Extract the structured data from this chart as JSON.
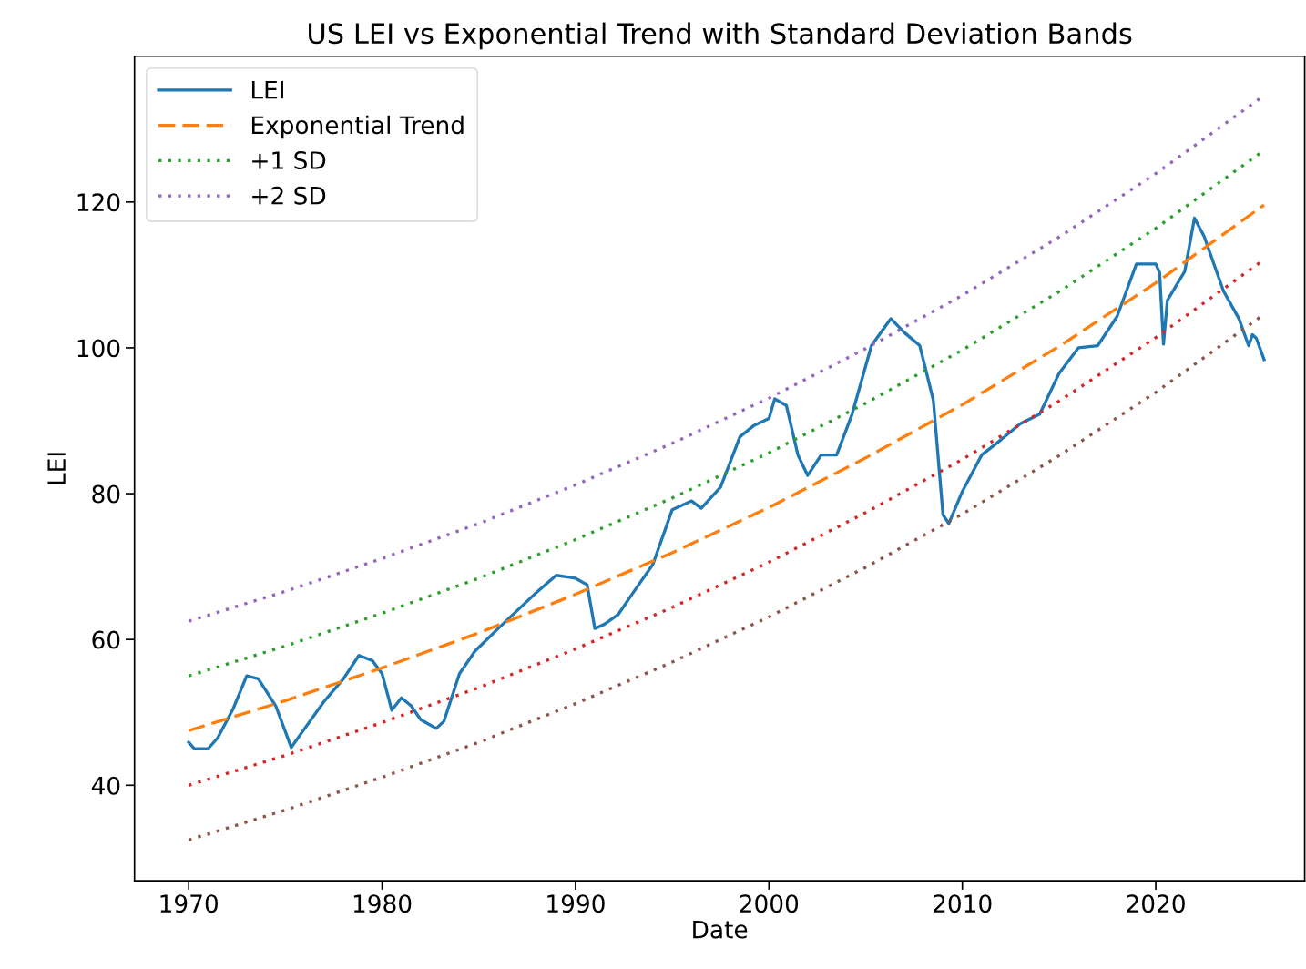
{
  "chart_data": {
    "type": "line",
    "title": "US LEI vs Exponential Trend with Standard Deviation Bands",
    "xlabel": "Date",
    "ylabel": "LEI",
    "xlim": [
      1967.2,
      2027.7
    ],
    "xticks": [
      1970,
      1980,
      1990,
      2000,
      2010,
      2020
    ],
    "ylim": [
      26.9,
      140
    ],
    "yticks": [
      40,
      60,
      80,
      100,
      120
    ],
    "grid": false,
    "legend": "top left",
    "series": [
      {
        "name": "LEI",
        "color": "#1f77b4",
        "line_style": "solid",
        "x": [
          1970.0,
          1970.3,
          1971.0,
          1971.5,
          1972.3,
          1973.0,
          1973.6,
          1974.5,
          1975.3,
          1976.0,
          1977.0,
          1978.0,
          1978.8,
          1979.5,
          1980.0,
          1980.5,
          1981.0,
          1981.5,
          1982.0,
          1982.8,
          1983.2,
          1984.0,
          1984.8,
          1986.0,
          1987.0,
          1988.0,
          1989.0,
          1990.0,
          1990.6,
          1991.0,
          1991.5,
          1992.2,
          1993.0,
          1994.0,
          1995.0,
          1996.0,
          1996.5,
          1997.5,
          1998.5,
          1999.2,
          2000.0,
          2000.3,
          2000.9,
          2001.5,
          2002.0,
          2002.7,
          2003.5,
          2004.3,
          2005.3,
          2006.3,
          2007.0,
          2007.8,
          2008.5,
          2009.0,
          2009.3,
          2010.0,
          2011.0,
          2012.0,
          2013.0,
          2014.0,
          2015.0,
          2016.0,
          2017.0,
          2018.0,
          2019.0,
          2020.0,
          2020.2,
          2020.4,
          2020.6,
          2021.5,
          2022.0,
          2022.5,
          2023.5,
          2024.3,
          2024.8,
          2025.0,
          2025.2,
          2025.6
        ],
        "values": [
          45.9,
          45.0,
          45.0,
          46.5,
          50.5,
          55.0,
          54.6,
          50.9,
          45.2,
          47.8,
          51.5,
          54.6,
          57.8,
          57.1,
          55.3,
          50.3,
          52.0,
          50.9,
          49.0,
          47.8,
          48.8,
          55.3,
          58.4,
          61.5,
          64.0,
          66.5,
          68.8,
          68.4,
          67.5,
          61.5,
          62.1,
          63.4,
          66.5,
          70.3,
          77.8,
          79.0,
          78.0,
          80.9,
          87.8,
          89.3,
          90.3,
          93.0,
          92.1,
          85.3,
          82.5,
          85.3,
          85.3,
          90.9,
          100.3,
          104.0,
          102.1,
          100.3,
          92.8,
          77.1,
          75.9,
          80.3,
          85.3,
          87.4,
          89.6,
          90.9,
          96.5,
          100.0,
          100.3,
          104.3,
          111.5,
          111.5,
          110.3,
          100.5,
          106.5,
          110.5,
          117.8,
          115.3,
          107.8,
          104.0,
          100.3,
          101.8,
          101.3,
          98.4
        ]
      },
      {
        "name": "Exponential Trend",
        "color": "#ff7f0e",
        "line_style": "dashed",
        "x": [
          1970,
          1975,
          1980,
          1985,
          1990,
          1995,
          2000,
          2005,
          2010,
          2015,
          2020,
          2025.6
        ],
        "values": [
          47.5,
          51.6,
          56.1,
          60.9,
          66.2,
          71.9,
          78.1,
          84.9,
          92.2,
          100.2,
          108.9,
          119.6
        ]
      },
      {
        "name": "+1 SD",
        "color": "#2ca02c",
        "line_style": "dotted",
        "x": [
          1970,
          1975,
          1980,
          1985,
          1990,
          1995,
          2000,
          2005,
          2010,
          2015,
          2020,
          2025.6
        ],
        "values": [
          55.0,
          59.1,
          63.6,
          68.4,
          73.7,
          79.4,
          85.6,
          92.4,
          99.7,
          107.7,
          116.4,
          127.1
        ]
      },
      {
        "name": "+2 SD",
        "color": "#9467bd",
        "line_style": "dotted",
        "x": [
          1970,
          1975,
          1980,
          1985,
          1990,
          1995,
          2000,
          2005,
          2010,
          2015,
          2020,
          2025.6
        ],
        "values": [
          62.5,
          66.6,
          71.1,
          75.9,
          81.2,
          86.9,
          93.1,
          99.9,
          107.2,
          115.2,
          123.9,
          134.6
        ]
      },
      {
        "color": "#d62728",
        "line_style": "dotted",
        "x": [
          1970,
          1975,
          1980,
          1985,
          1990,
          1995,
          2000,
          2005,
          2010,
          2015,
          2020,
          2025.6
        ],
        "values": [
          40.0,
          44.1,
          48.6,
          53.4,
          58.7,
          64.4,
          70.6,
          77.4,
          84.7,
          92.7,
          101.4,
          112.1
        ]
      },
      {
        "color": "#8c564b",
        "line_style": "dotted",
        "x": [
          1970,
          1975,
          1980,
          1985,
          1990,
          1995,
          2000,
          2005,
          2010,
          2015,
          2020,
          2025.6
        ],
        "values": [
          32.5,
          36.6,
          41.1,
          45.9,
          51.2,
          56.9,
          63.1,
          69.9,
          77.2,
          85.2,
          93.9,
          104.6
        ]
      }
    ]
  }
}
